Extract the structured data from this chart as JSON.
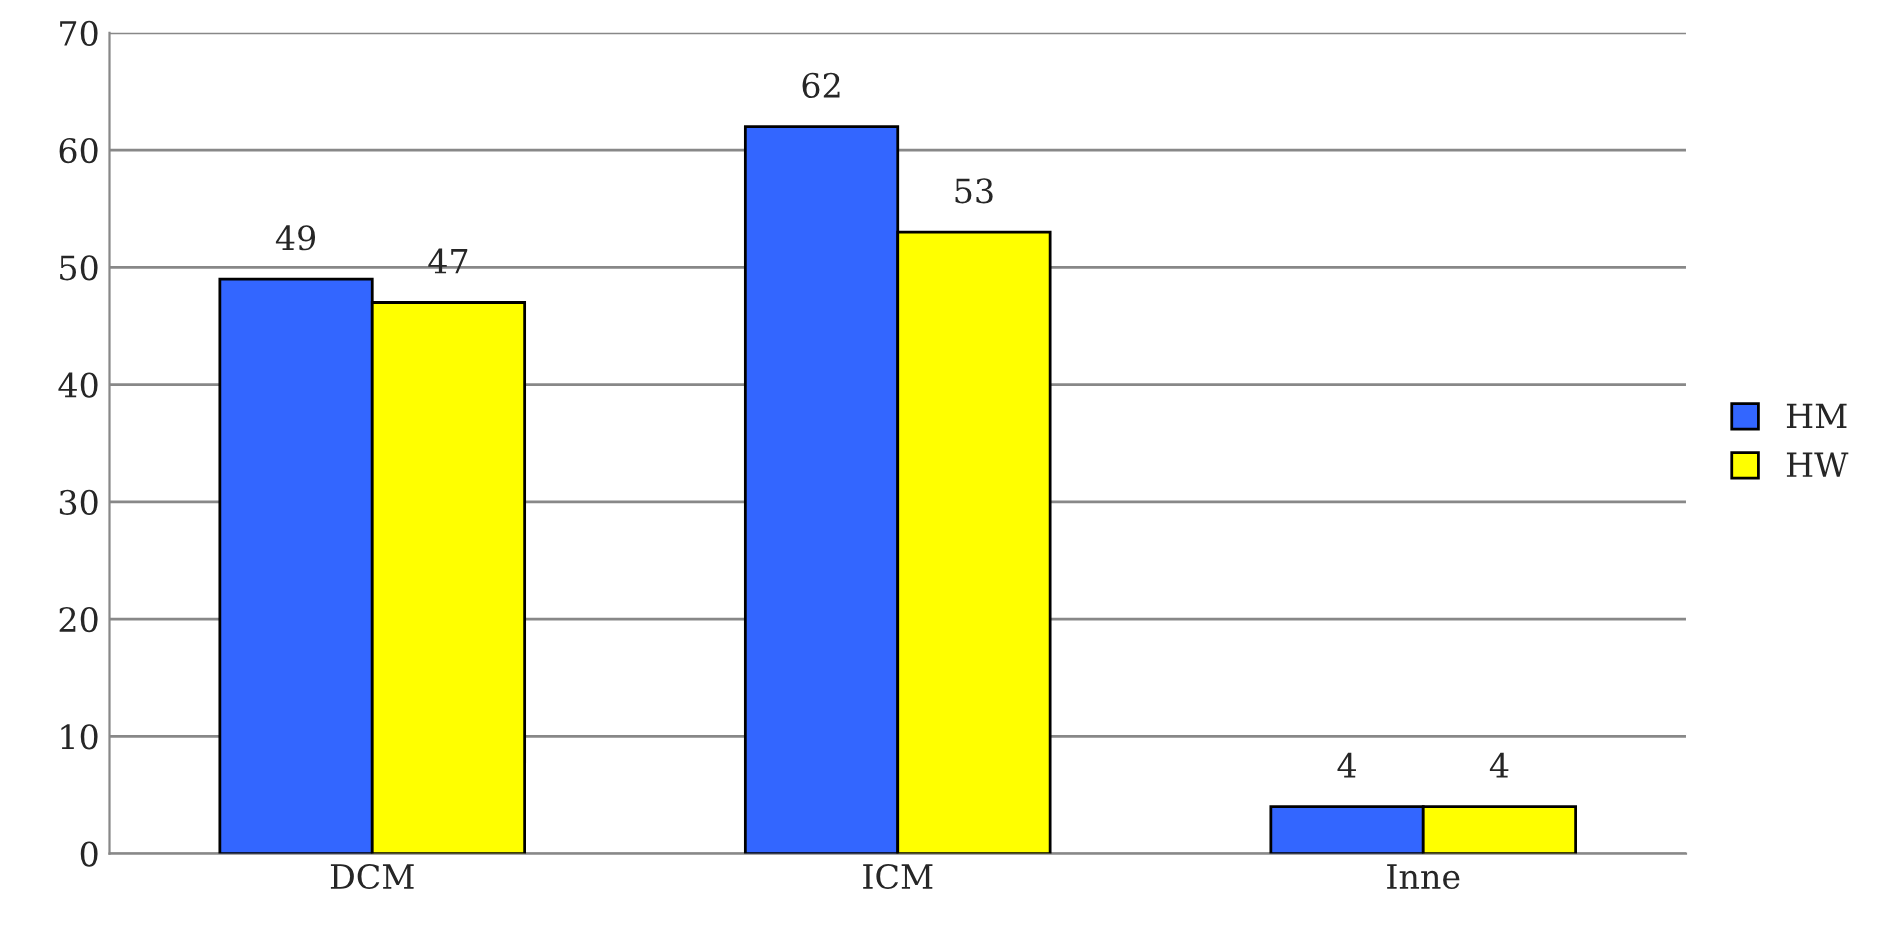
{
  "chart_data": {
    "type": "bar",
    "categories": [
      "DCM",
      "ICM",
      "Inne"
    ],
    "series": [
      {
        "name": "HM",
        "color": "#3366ff",
        "values": [
          49,
          62,
          4
        ]
      },
      {
        "name": "HW",
        "color": "#ffff00",
        "values": [
          47,
          53,
          4
        ]
      }
    ],
    "ylim": [
      0,
      70
    ],
    "yticks": [
      0,
      10,
      20,
      30,
      40,
      50,
      60,
      70
    ],
    "grid": "y",
    "legend": "right",
    "data_labels": true
  }
}
